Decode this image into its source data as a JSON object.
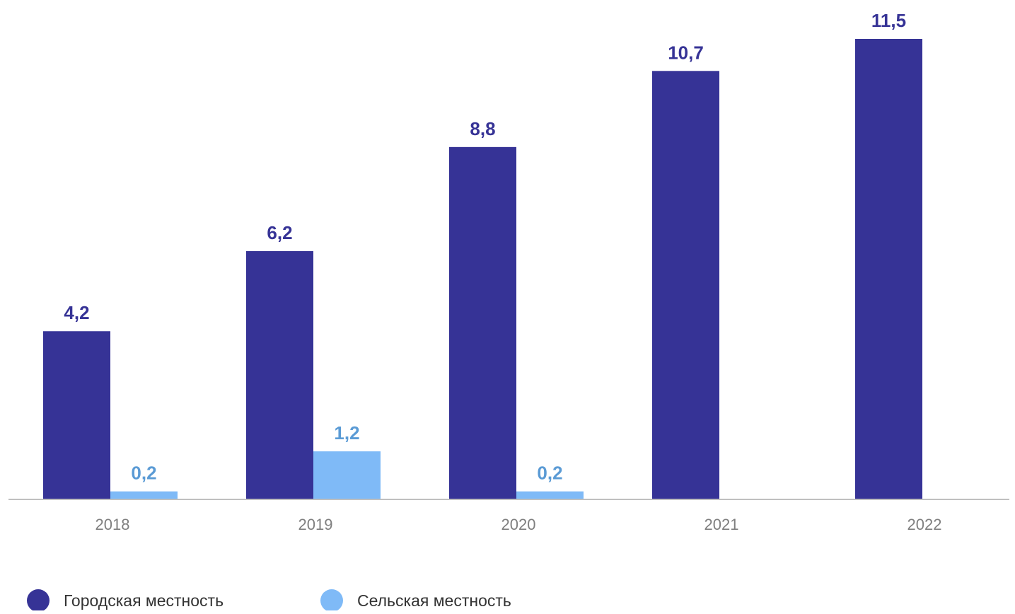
{
  "chart_data": {
    "type": "bar",
    "categories": [
      "2018",
      "2019",
      "2020",
      "2021",
      "2022"
    ],
    "series": [
      {
        "name": "Городская местность",
        "values": [
          4.2,
          6.2,
          8.8,
          10.7,
          11.5
        ],
        "labels": [
          "4,2",
          "6,2",
          "8,8",
          "10,7",
          "11,5"
        ],
        "color": "#363396",
        "label_color": "#363396"
      },
      {
        "name": "Сельская местность",
        "values": [
          0.2,
          1.2,
          0.2,
          null,
          null
        ],
        "labels": [
          "0,2",
          "1,2",
          "0,2",
          "",
          ""
        ],
        "color": "#7fbaf7",
        "label_color": "#5b9bd5"
      }
    ],
    "ylim": [
      0,
      11.5
    ],
    "grid": false,
    "legend_position": "bottom-left",
    "axis_color": "#bfbfbf"
  }
}
